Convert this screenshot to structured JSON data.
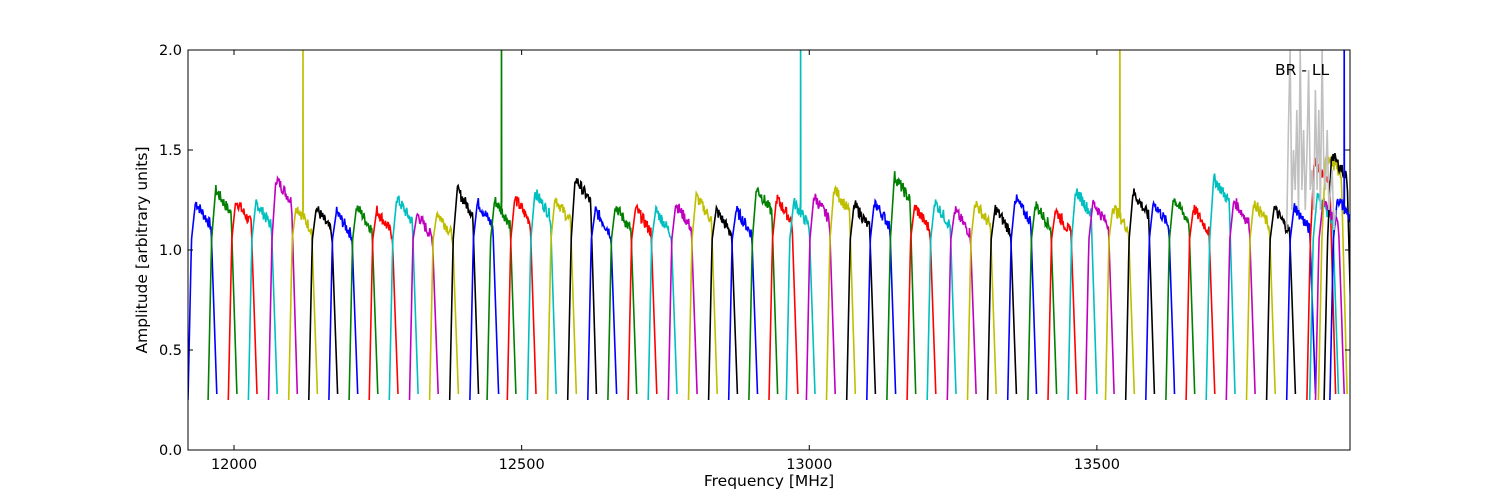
{
  "chart_data": {
    "type": "line",
    "title": "",
    "xlabel": "Frequency [MHz]",
    "ylabel": "Amplitude [arbitrary units]",
    "xlim": [
      11920,
      13940
    ],
    "ylim": [
      0.0,
      2.0
    ],
    "xticks": [
      12000,
      12500,
      13000,
      13500
    ],
    "yticks": [
      0.0,
      0.5,
      1.0,
      1.5,
      2.0
    ],
    "xtick_labels": [
      "12000",
      "12500",
      "13000",
      "13500"
    ],
    "ytick_labels": [
      "0.0",
      "0.5",
      "1.0",
      "1.5",
      "2.0"
    ],
    "annotation": "BR - LL",
    "grid": false,
    "legend": false,
    "band_width_mhz": 50,
    "color_cycle": [
      "#0000ff",
      "#008000",
      "#ff0000",
      "#00bfbf",
      "#bf00bf",
      "#bfbf00",
      "#000000"
    ],
    "bands": [
      {
        "start": 11920,
        "peak": 1.24,
        "color": "#0000ff"
      },
      {
        "start": 11955,
        "peak": 1.3,
        "color": "#008000"
      },
      {
        "start": 11990,
        "peak": 1.25,
        "color": "#ff0000"
      },
      {
        "start": 12025,
        "peak": 1.24,
        "color": "#00bfbf"
      },
      {
        "start": 12060,
        "peak": 1.36,
        "color": "#bf00bf"
      },
      {
        "start": 12095,
        "peak": 1.22,
        "color": "#bfbf00",
        "spike": 2.0
      },
      {
        "start": 12130,
        "peak": 1.21,
        "color": "#000000"
      },
      {
        "start": 12165,
        "peak": 1.19,
        "color": "#0000ff"
      },
      {
        "start": 12200,
        "peak": 1.22,
        "color": "#008000"
      },
      {
        "start": 12235,
        "peak": 1.2,
        "color": "#ff0000"
      },
      {
        "start": 12270,
        "peak": 1.26,
        "color": "#00bfbf"
      },
      {
        "start": 12305,
        "peak": 1.18,
        "color": "#bf00bf"
      },
      {
        "start": 12340,
        "peak": 1.19,
        "color": "#bfbf00"
      },
      {
        "start": 12375,
        "peak": 1.3,
        "color": "#000000"
      },
      {
        "start": 12410,
        "peak": 1.24,
        "color": "#0000ff"
      },
      {
        "start": 12440,
        "peak": 1.25,
        "color": "#008000",
        "spike": 2.0
      },
      {
        "start": 12475,
        "peak": 1.26,
        "color": "#ff0000"
      },
      {
        "start": 12510,
        "peak": 1.29,
        "color": "#00bfbf"
      },
      {
        "start": 12545,
        "peak": 1.26,
        "color": "#bfbf00"
      },
      {
        "start": 12580,
        "peak": 1.36,
        "color": "#000000"
      },
      {
        "start": 12615,
        "peak": 1.2,
        "color": "#0000ff"
      },
      {
        "start": 12650,
        "peak": 1.22,
        "color": "#008000"
      },
      {
        "start": 12685,
        "peak": 1.21,
        "color": "#ff0000"
      },
      {
        "start": 12720,
        "peak": 1.2,
        "color": "#00bfbf"
      },
      {
        "start": 12755,
        "peak": 1.23,
        "color": "#bf00bf"
      },
      {
        "start": 12790,
        "peak": 1.27,
        "color": "#bfbf00"
      },
      {
        "start": 12825,
        "peak": 1.2,
        "color": "#000000"
      },
      {
        "start": 12860,
        "peak": 1.2,
        "color": "#0000ff"
      },
      {
        "start": 12895,
        "peak": 1.31,
        "color": "#008000"
      },
      {
        "start": 12930,
        "peak": 1.26,
        "color": "#ff0000"
      },
      {
        "start": 12960,
        "peak": 1.24,
        "color": "#00bfbf",
        "spike": 2.0
      },
      {
        "start": 12995,
        "peak": 1.27,
        "color": "#bf00bf"
      },
      {
        "start": 13030,
        "peak": 1.31,
        "color": "#bfbf00"
      },
      {
        "start": 13065,
        "peak": 1.23,
        "color": "#000000"
      },
      {
        "start": 13100,
        "peak": 1.24,
        "color": "#0000ff"
      },
      {
        "start": 13135,
        "peak": 1.37,
        "color": "#008000"
      },
      {
        "start": 13170,
        "peak": 1.22,
        "color": "#ff0000"
      },
      {
        "start": 13205,
        "peak": 1.24,
        "color": "#00bfbf"
      },
      {
        "start": 13240,
        "peak": 1.2,
        "color": "#bf00bf"
      },
      {
        "start": 13275,
        "peak": 1.24,
        "color": "#bfbf00"
      },
      {
        "start": 13310,
        "peak": 1.21,
        "color": "#000000"
      },
      {
        "start": 13345,
        "peak": 1.26,
        "color": "#0000ff"
      },
      {
        "start": 13380,
        "peak": 1.23,
        "color": "#008000"
      },
      {
        "start": 13415,
        "peak": 1.2,
        "color": "#ff0000"
      },
      {
        "start": 13450,
        "peak": 1.3,
        "color": "#00bfbf"
      },
      {
        "start": 13480,
        "peak": 1.24,
        "color": "#bf00bf"
      },
      {
        "start": 13515,
        "peak": 1.22,
        "color": "#bfbf00",
        "spike": 2.0
      },
      {
        "start": 13550,
        "peak": 1.29,
        "color": "#000000"
      },
      {
        "start": 13585,
        "peak": 1.24,
        "color": "#0000ff"
      },
      {
        "start": 13620,
        "peak": 1.26,
        "color": "#008000"
      },
      {
        "start": 13655,
        "peak": 1.21,
        "color": "#ff0000"
      },
      {
        "start": 13690,
        "peak": 1.36,
        "color": "#00bfbf"
      },
      {
        "start": 13725,
        "peak": 1.25,
        "color": "#bf00bf"
      },
      {
        "start": 13760,
        "peak": 1.24,
        "color": "#bfbf00"
      },
      {
        "start": 13795,
        "peak": 1.21,
        "color": "#000000"
      },
      {
        "start": 13830,
        "peak": 1.22,
        "color": "#0000ff"
      },
      {
        "start": 13865,
        "peak": 1.45,
        "color": "#ff0000"
      },
      {
        "start": 13870,
        "peak": 1.27,
        "color": "#00bfbf"
      },
      {
        "start": 13880,
        "peak": 1.24,
        "color": "#bf00bf"
      },
      {
        "start": 13885,
        "peak": 1.49,
        "color": "#bfbf00"
      },
      {
        "start": 13895,
        "peak": 1.48,
        "color": "#000000"
      },
      {
        "start": 13905,
        "peak": 1.26,
        "color": "#0000ff",
        "spike": 2.0
      }
    ],
    "noisy_series": {
      "color": "#c0c0c0",
      "x_start": 13830,
      "x_end": 13915,
      "values": [
        1.1,
        1.6,
        2.0,
        1.2,
        1.5,
        1.3,
        1.7,
        1.2,
        2.0,
        1.3,
        1.6,
        1.2,
        1.5,
        1.9,
        1.3,
        1.4,
        1.2,
        1.8,
        1.3,
        1.7,
        1.2,
        2.0,
        1.4,
        1.3,
        1.6,
        1.2,
        1.3,
        1.4,
        1.1,
        1.2
      ]
    }
  }
}
